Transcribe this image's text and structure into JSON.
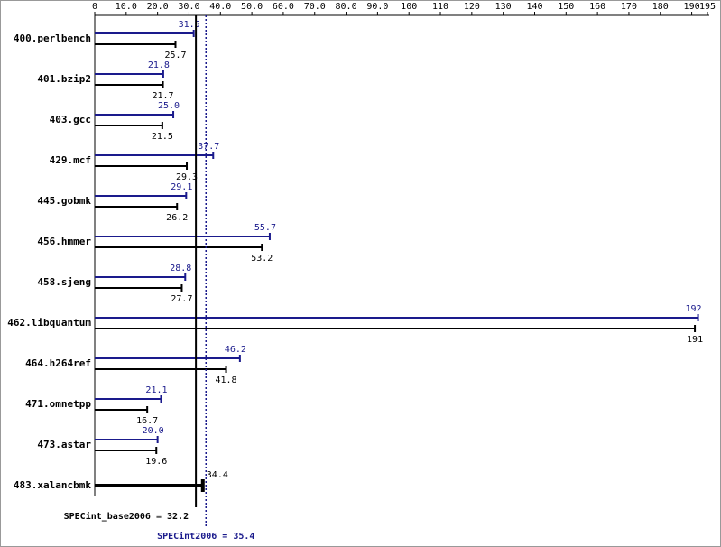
{
  "chart_data": {
    "type": "bar",
    "orientation": "horizontal",
    "categories": [
      "400.perlbench",
      "401.bzip2",
      "403.gcc",
      "429.mcf",
      "445.gobmk",
      "456.hmmer",
      "458.sjeng",
      "462.libquantum",
      "464.h264ref",
      "471.omnetpp",
      "473.astar",
      "483.xalancbmk"
    ],
    "series": [
      {
        "color": "#1a1a8c",
        "values": [
          31.5,
          21.8,
          25.0,
          37.7,
          29.1,
          55.7,
          28.8,
          192,
          46.2,
          21.1,
          20.0,
          null
        ],
        "value_labels": [
          "31.5",
          "21.8",
          "25.0",
          "37.7",
          "29.1",
          "55.7",
          "28.8",
          "192",
          "46.2",
          "21.1",
          "20.0",
          null
        ]
      },
      {
        "color": "#000000",
        "values": [
          25.7,
          21.7,
          21.5,
          29.3,
          26.2,
          53.2,
          27.7,
          191,
          41.8,
          16.7,
          19.6,
          34.4
        ]
      }
    ],
    "xlim": [
      0,
      195
    ],
    "xticks": [
      0,
      {
        "value": 10,
        "label": "10.0"
      },
      {
        "value": 20,
        "label": "20.0"
      },
      {
        "value": 30,
        "label": "30.0"
      },
      {
        "value": 40,
        "label": "40.0"
      },
      {
        "value": 50,
        "label": "50.0"
      },
      {
        "value": 60,
        "label": "60.0"
      },
      {
        "value": 70,
        "label": "70.0"
      },
      {
        "value": 80,
        "label": "80.0"
      },
      {
        "value": 90,
        "label": "90.0"
      },
      100,
      110,
      120,
      130,
      140,
      150,
      160,
      170,
      180,
      190,
      195
    ],
    "reference_lines": [
      {
        "label": "SPECint_base2006 = 32.2",
        "value": 32.2,
        "color": "#000000",
        "style": "solid"
      },
      {
        "label": "SPECint2006 = 35.4",
        "value": 35.4,
        "color": "#1a1a8c",
        "style": "dotted"
      }
    ]
  }
}
